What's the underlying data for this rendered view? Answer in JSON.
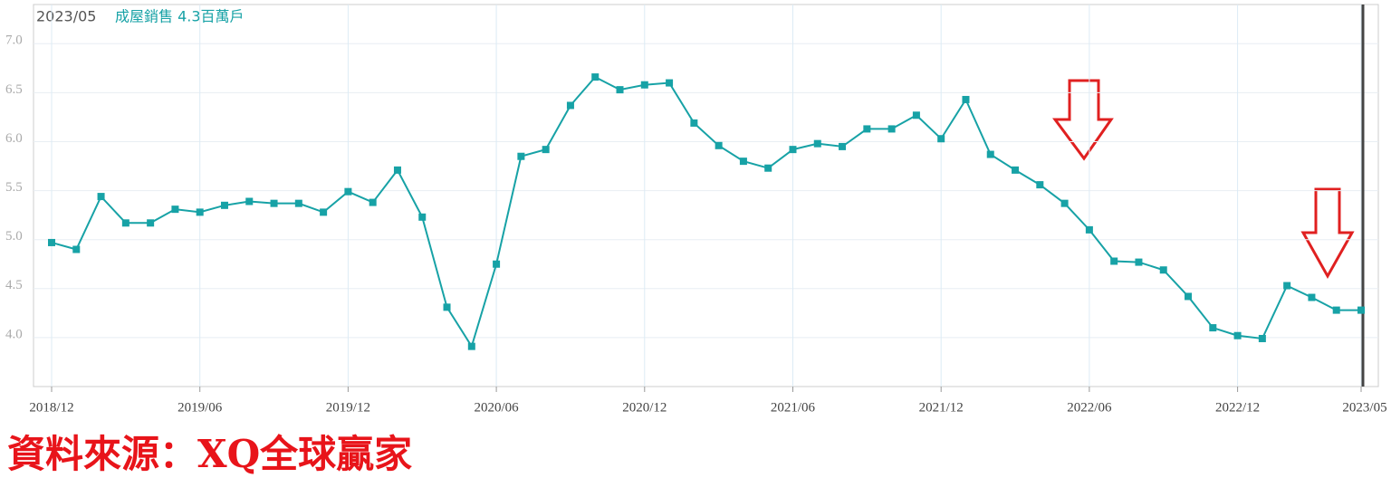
{
  "chart_data": {
    "type": "line",
    "title": "2023/05",
    "subtitle": "成屋銷售 4.3百萬戶",
    "categories": [
      "2018/12",
      null,
      null,
      null,
      null,
      null,
      "2019/06",
      null,
      null,
      null,
      null,
      null,
      "2019/12",
      null,
      null,
      null,
      null,
      null,
      "2020/06",
      null,
      null,
      null,
      null,
      null,
      "2020/12",
      null,
      null,
      null,
      null,
      null,
      "2021/06",
      null,
      null,
      null,
      null,
      null,
      "2021/12",
      null,
      null,
      null,
      null,
      null,
      "2022/06",
      null,
      null,
      null,
      null,
      null,
      "2022/12",
      null,
      null,
      null,
      null,
      "2023/05"
    ],
    "series": [
      {
        "name": "成屋銷售",
        "color": "#17a2a6",
        "values": [
          4.97,
          4.9,
          5.44,
          5.17,
          5.17,
          5.31,
          5.28,
          5.35,
          5.39,
          5.37,
          5.37,
          5.28,
          5.49,
          5.38,
          5.71,
          5.23,
          4.31,
          3.91,
          4.75,
          5.85,
          5.92,
          6.37,
          6.66,
          6.53,
          6.58,
          6.6,
          6.19,
          5.96,
          5.8,
          5.73,
          5.92,
          5.98,
          5.95,
          6.13,
          6.13,
          6.27,
          6.03,
          6.43,
          5.87,
          5.71,
          5.56,
          5.37,
          5.1,
          4.78,
          4.77,
          4.69,
          4.42,
          4.1,
          4.02,
          3.99,
          4.53,
          4.41,
          4.28,
          4.28
        ]
      }
    ],
    "ylim": [
      3.5,
      7.4
    ],
    "yticks": [
      {
        "value": 4,
        "label": "4.0"
      },
      4.5,
      {
        "value": 5,
        "label": "5.0"
      },
      5.5,
      {
        "value": 6,
        "label": "6.0"
      },
      6.5,
      {
        "value": 7,
        "label": "7.0"
      }
    ],
    "grid": true
  },
  "source": "資料來源：XQ全球贏家"
}
